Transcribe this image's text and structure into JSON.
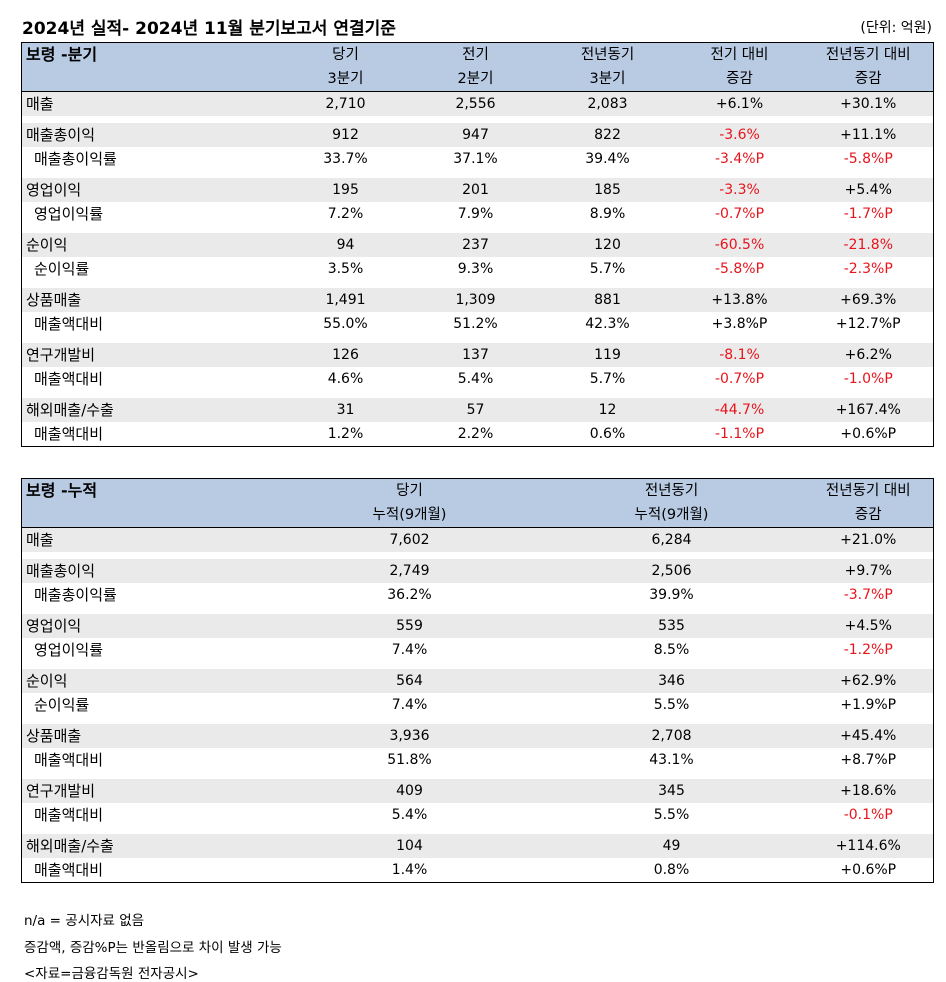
{
  "title": "2024년 실적- 2024년 11월 분기보고서 연결기준",
  "unit": "(단위: 억원)",
  "quarterly": {
    "name": "보령 -분기",
    "headers": [
      [
        "당기",
        "3분기"
      ],
      [
        "전기",
        "2분기"
      ],
      [
        "전년동기",
        "3분기"
      ],
      [
        "전기 대비",
        "증감"
      ],
      [
        "전년동기 대비",
        "증감"
      ]
    ],
    "rows": [
      {
        "label": "매출",
        "sub": false,
        "values": [
          "2,710",
          "2,556",
          "2,083",
          "+6.1%",
          "+30.1%"
        ]
      },
      {
        "label": "매출총이익",
        "sub": false,
        "values": [
          "912",
          "947",
          "822",
          "-3.6%",
          "+11.1%"
        ]
      },
      {
        "label": "매출총이익률",
        "sub": true,
        "values": [
          "33.7%",
          "37.1%",
          "39.4%",
          "-3.4%P",
          "-5.8%P"
        ]
      },
      {
        "label": "영업이익",
        "sub": false,
        "values": [
          "195",
          "201",
          "185",
          "-3.3%",
          "+5.4%"
        ]
      },
      {
        "label": "영업이익률",
        "sub": true,
        "values": [
          "7.2%",
          "7.9%",
          "8.9%",
          "-0.7%P",
          "-1.7%P"
        ]
      },
      {
        "label": "순이익",
        "sub": false,
        "values": [
          "94",
          "237",
          "120",
          "-60.5%",
          "-21.8%"
        ]
      },
      {
        "label": "순이익률",
        "sub": true,
        "values": [
          "3.5%",
          "9.3%",
          "5.7%",
          "-5.8%P",
          "-2.3%P"
        ]
      },
      {
        "label": "상품매출",
        "sub": false,
        "values": [
          "1,491",
          "1,309",
          "881",
          "+13.8%",
          "+69.3%"
        ]
      },
      {
        "label": "매출액대비",
        "sub": true,
        "values": [
          "55.0%",
          "51.2%",
          "42.3%",
          "+3.8%P",
          "+12.7%P"
        ]
      },
      {
        "label": "연구개발비",
        "sub": false,
        "values": [
          "126",
          "137",
          "119",
          "-8.1%",
          "+6.2%"
        ]
      },
      {
        "label": "매출액대비",
        "sub": true,
        "values": [
          "4.6%",
          "5.4%",
          "5.7%",
          "-0.7%P",
          "-1.0%P"
        ]
      },
      {
        "label": "해외매출/수출",
        "sub": false,
        "values": [
          "31",
          "57",
          "12",
          "-44.7%",
          "+167.4%"
        ]
      },
      {
        "label": "매출액대비",
        "sub": true,
        "values": [
          "1.2%",
          "2.2%",
          "0.6%",
          "-1.1%P",
          "+0.6%P"
        ]
      }
    ]
  },
  "cumulative": {
    "name": "보령 -누적",
    "headers": [
      [
        "당기",
        "누적(9개월)"
      ],
      [
        "전년동기",
        "누적(9개월)"
      ],
      [
        "전년동기 대비",
        "증감"
      ]
    ],
    "rows": [
      {
        "label": "매출",
        "sub": false,
        "values": [
          "7,602",
          "6,284",
          "+21.0%"
        ]
      },
      {
        "label": "매출총이익",
        "sub": false,
        "values": [
          "2,749",
          "2,506",
          "+9.7%"
        ]
      },
      {
        "label": "매출총이익률",
        "sub": true,
        "values": [
          "36.2%",
          "39.9%",
          "-3.7%P"
        ]
      },
      {
        "label": "영업이익",
        "sub": false,
        "values": [
          "559",
          "535",
          "+4.5%"
        ]
      },
      {
        "label": "영업이익률",
        "sub": true,
        "values": [
          "7.4%",
          "8.5%",
          "-1.2%P"
        ]
      },
      {
        "label": "순이익",
        "sub": false,
        "values": [
          "564",
          "346",
          "+62.9%"
        ]
      },
      {
        "label": "순이익률",
        "sub": true,
        "values": [
          "7.4%",
          "5.5%",
          "+1.9%P"
        ]
      },
      {
        "label": "상품매출",
        "sub": false,
        "values": [
          "3,936",
          "2,708",
          "+45.4%"
        ]
      },
      {
        "label": "매출액대비",
        "sub": true,
        "values": [
          "51.8%",
          "43.1%",
          "+8.7%P"
        ]
      },
      {
        "label": "연구개발비",
        "sub": false,
        "values": [
          "409",
          "345",
          "+18.6%"
        ]
      },
      {
        "label": "매출액대비",
        "sub": true,
        "values": [
          "5.4%",
          "5.5%",
          "-0.1%P"
        ]
      },
      {
        "label": "해외매출/수출",
        "sub": false,
        "values": [
          "104",
          "49",
          "+114.6%"
        ]
      },
      {
        "label": "매출액대비",
        "sub": true,
        "values": [
          "1.4%",
          "0.8%",
          "+0.6%P"
        ]
      }
    ]
  },
  "footer": [
    "n/a = 공시자료 없음",
    "증감액, 증감%P는 반올림으로 차이 발생 가능",
    "<자료=금융감독원 전자공시>"
  ],
  "colors": {
    "header_bg": "#b9cbe3",
    "alt_row_bg": "#eaeaea",
    "negative": "#e8141c"
  }
}
